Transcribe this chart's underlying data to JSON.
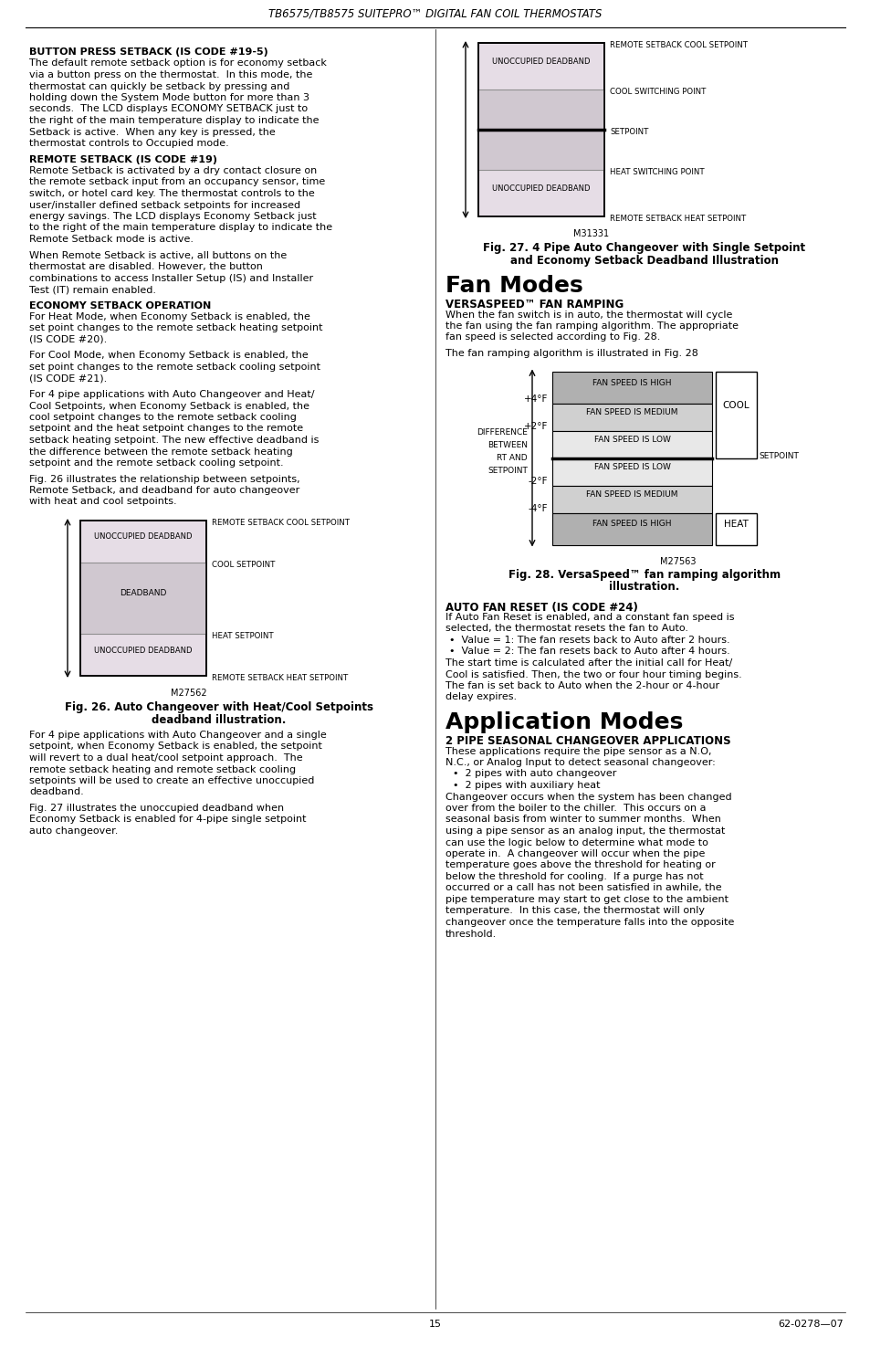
{
  "title_header": "TB6575/TB8575 SUITEPRO™ DIGITAL FAN COIL THERMOSTATS",
  "page_number": "15",
  "page_ref": "62-0278—07",
  "left_col": {
    "sec1_head": "BUTTON PRESS SETBACK (IS CODE #19-5)",
    "sec1_body": [
      "The default remote setback option is for economy setback",
      "via a button press on the thermostat.  In this mode, the",
      "thermostat can quickly be setback by pressing and",
      "holding down the System Mode button for more than 3",
      "seconds.  The LCD displays ECONOMY SETBACK just to",
      "the right of the main temperature display to indicate the",
      "Setback is active.  When any key is pressed, the",
      "thermostat controls to Occupied mode."
    ],
    "sec2_head": "REMOTE SETBACK (IS CODE #19)",
    "sec2_body": [
      "Remote Setback is activated by a dry contact closure on",
      "the remote setback input from an occupancy sensor, time",
      "switch, or hotel card key. The thermostat controls to the",
      "user/installer defined setback setpoints for increased",
      "energy savings. The LCD displays Economy Setback just",
      "to the right of the main temperature display to indicate the",
      "Remote Setback mode is active."
    ],
    "sec3_body": [
      "When Remote Setback is active, all buttons on the",
      "thermostat are disabled. However, the button",
      "combinations to access Installer Setup (IS) and Installer",
      "Test (IT) remain enabled."
    ],
    "sec4_head": "ECONOMY SETBACK OPERATION",
    "sec4_para1": [
      "For Heat Mode, when Economy Setback is enabled, the",
      "set point changes to the remote setback heating setpoint",
      "(IS CODE #20)."
    ],
    "sec4_para2": [
      "For Cool Mode, when Economy Setback is enabled, the",
      "set point changes to the remote setback cooling setpoint",
      "(IS CODE #21)."
    ],
    "sec4_para3": [
      "For 4 pipe applications with Auto Changeover and Heat/",
      "Cool Setpoints, when Economy Setback is enabled, the",
      "cool setpoint changes to the remote setback cooling",
      "setpoint and the heat setpoint changes to the remote",
      "setback heating setpoint. The new effective deadband is",
      "the difference between the remote setback heating",
      "setpoint and the remote setback cooling setpoint."
    ],
    "sec4_para4": [
      "Fig. 26 illustrates the relationship between setpoints,",
      "Remote Setback, and deadband for auto changeover",
      "with heat and cool setpoints."
    ],
    "fig26_lbl_top": "REMOTE SETBACK COOL SETPOINT",
    "fig26_lbl_uband": "UNOCCUPIED DEADBAND",
    "fig26_lbl_cool": "COOL SETPOINT",
    "fig26_lbl_db": "DEADBAND",
    "fig26_lbl_heat": "HEAT SETPOINT",
    "fig26_lbl_lband": "UNOCCUPIED DEADBAND",
    "fig26_lbl_bot": "REMOTE SETBACK HEAT SETPOINT",
    "fig26_code": "M27562",
    "fig26_cap1": "Fig. 26. Auto Changeover with Heat/Cool Setpoints",
    "fig26_cap2": "deadband illustration.",
    "sec5_para1": [
      "For 4 pipe applications with Auto Changeover and a single",
      "setpoint, when Economy Setback is enabled, the setpoint",
      "will revert to a dual heat/cool setpoint approach.  The",
      "remote setback heating and remote setback cooling",
      "setpoints will be used to create an effective unoccupied",
      "deadband."
    ],
    "sec5_para2": [
      "Fig. 27 illustrates the unoccupied deadband when",
      "Economy Setback is enabled for 4-pipe single setpoint",
      "auto changeover."
    ]
  },
  "right_col": {
    "fig27_lbl_top": "REMOTE SETBACK COOL SETPOINT",
    "fig27_lbl_uband": "UNOCCUPIED DEADBAND",
    "fig27_lbl_cool_sw": "COOL SWITCHING POINT",
    "fig27_lbl_setpt": "SETPOINT",
    "fig27_lbl_heat_sw": "HEAT SWITCHING POINT",
    "fig27_lbl_lband": "UNOCCUPIED DEADBAND",
    "fig27_lbl_bot": "REMOTE SETBACK HEAT SETPOINT",
    "fig27_code": "M31331",
    "fig27_cap1": "Fig. 27. 4 Pipe Auto Changeover with Single Setpoint",
    "fig27_cap2": "and Economy Setback Deadband Illustration",
    "fan_modes_head": "Fan Modes",
    "versaspeed_head": "VERSASPEED™ FAN RAMPING",
    "versaspeed_body": [
      "When the fan switch is in auto, the thermostat will cycle",
      "the fan using the fan ramping algorithm. The appropriate",
      "fan speed is selected according to Fig. 28."
    ],
    "versaspeed_body2": [
      "The fan ramping algorithm is illustrated in Fig. 28"
    ],
    "fig28_high_cool": "FAN SPEED IS HIGH",
    "fig28_med_cool": "FAN SPEED IS MEDIUM",
    "fig28_low_cool": "FAN SPEED IS LOW",
    "fig28_low_heat": "FAN SPEED IS LOW",
    "fig28_med_heat": "FAN SPEED IS MEDIUM",
    "fig28_high_heat": "FAN SPEED IS HIGH",
    "fig28_p4": "+4°F",
    "fig28_p2": "+2°F",
    "fig28_m2": "-2°F",
    "fig28_m4": "-4°F",
    "fig28_diff": "DIFFERENCE",
    "fig28_between": "BETWEEN",
    "fig28_rtand": "RT AND",
    "fig28_setpoint": "SETPOINT",
    "fig28_cool": "COOL",
    "fig28_setpoint_lbl": "SETPOINT",
    "fig28_heat": "HEAT",
    "fig28_code": "M27563",
    "fig28_cap1": "Fig. 28. VersaSpeed™ fan ramping algorithm",
    "fig28_cap2": "illustration.",
    "auto_fan_head": "AUTO FAN RESET (IS CODE #24)",
    "auto_fan_body": [
      "If Auto Fan Reset is enabled, and a constant fan speed is",
      "selected, the thermostat resets the fan to Auto.",
      "•  Value = 1: The fan resets back to Auto after 2 hours.",
      "•  Value = 2: The fan resets back to Auto after 4 hours.",
      "The start time is calculated after the initial call for Heat/",
      "Cool is satisfied. Then, the two or four hour timing begins.",
      "The fan is set back to Auto when the 2-hour or 4-hour",
      "delay expires."
    ],
    "app_modes_head": "Application Modes",
    "pipe2_head": "2 PIPE SEASONAL CHANGEOVER APPLICATIONS",
    "pipe2_body": [
      "These applications require the pipe sensor as a N.O,",
      "N.C., or Analog Input to detect seasonal changeover:",
      "•  2 pipes with auto changeover",
      "•  2 pipes with auxiliary heat",
      "Changeover occurs when the system has been changed",
      "over from the boiler to the chiller.  This occurs on a",
      "seasonal basis from winter to summer months.  When",
      "using a pipe sensor as an analog input, the thermostat",
      "can use the logic below to determine what mode to",
      "operate in.  A changeover will occur when the pipe",
      "temperature goes above the threshold for heating or",
      "below the threshold for cooling.  If a purge has not",
      "occurred or a call has not been satisfied in awhile, the",
      "pipe temperature may start to get close to the ambient",
      "temperature.  In this case, the thermostat will only",
      "changeover once the temperature falls into the opposite",
      "threshold."
    ]
  }
}
